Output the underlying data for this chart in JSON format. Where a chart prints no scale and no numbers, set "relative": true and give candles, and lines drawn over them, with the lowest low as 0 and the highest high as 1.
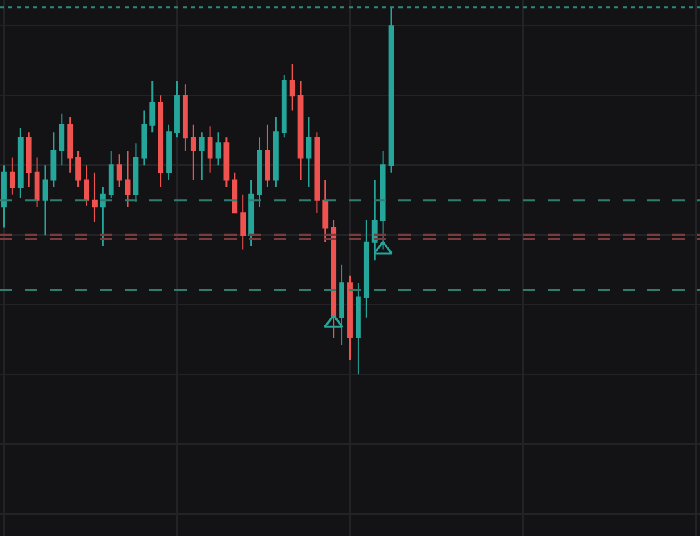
{
  "chart_data": {
    "type": "candlestick",
    "relative": true,
    "grid": true,
    "colors": [
      "#26a69a",
      "#ef5350",
      "#26a69a",
      "#ef5350",
      "#ef5350",
      "#26a69a",
      "#26a69a",
      "#26a69a",
      "#ef5350",
      "#ef5350",
      "#ef5350",
      "#ef5350",
      "#26a69a",
      "#26a69a",
      "#ef5350",
      "#ef5350",
      "#26a69a",
      "#26a69a",
      "#26a69a",
      "#ef5350",
      "#26a69a",
      "#26a69a",
      "#ef5350",
      "#ef5350",
      "#26a69a",
      "#ef5350",
      "#26a69a",
      "#ef5350",
      "#ef5350",
      "#ef5350",
      "#26a69a",
      "#26a69a",
      "#ef5350",
      "#26a69a",
      "#26a69a",
      "#ef5350",
      "#ef5350",
      "#26a69a",
      "#ef5350",
      "#ef5350",
      "#ef5350",
      "#26a69a",
      "#ef5350",
      "#26a69a",
      "#26a69a",
      "#26a69a",
      "#26a69a",
      "#26a69a",
      null,
      null,
      null,
      null,
      null,
      null,
      null,
      null,
      null,
      null,
      null,
      null,
      null,
      null,
      null,
      null,
      null,
      null,
      null,
      null,
      null,
      null,
      null,
      null,
      null,
      null,
      null,
      null,
      null,
      null,
      null,
      null,
      null,
      null,
      null,
      null,
      null
    ],
    "categories": [
      null,
      null,
      null,
      null,
      null,
      null,
      null,
      null,
      null,
      null,
      null,
      null,
      null,
      null,
      null,
      null,
      null,
      null,
      null,
      null,
      null,
      null,
      null,
      null,
      null,
      null,
      null,
      null,
      null,
      null,
      null,
      null,
      null,
      null,
      null,
      null,
      null,
      null,
      null,
      null,
      null,
      null,
      null,
      null,
      null,
      null,
      null,
      null,
      null,
      null,
      null,
      null,
      null,
      null,
      null,
      null,
      null,
      null,
      null,
      null,
      null,
      null,
      null,
      null,
      null,
      null,
      null,
      null,
      null,
      null,
      null,
      null,
      null,
      null,
      null,
      null,
      null,
      null,
      null,
      null,
      null,
      null,
      null,
      null,
      null
    ],
    "ohlc": [
      [
        0.457,
        0.57,
        0.4,
        0.55
      ],
      [
        0.55,
        0.59,
        0.49,
        0.51
      ],
      [
        0.51,
        0.67,
        0.48,
        0.645
      ],
      [
        0.645,
        0.66,
        0.51,
        0.55
      ],
      [
        0.55,
        0.59,
        0.457,
        0.475
      ],
      [
        0.475,
        0.57,
        0.38,
        0.53
      ],
      [
        0.53,
        0.66,
        0.51,
        0.61
      ],
      [
        0.61,
        0.71,
        0.57,
        0.68
      ],
      [
        0.68,
        0.7,
        0.55,
        0.59
      ],
      [
        0.59,
        0.61,
        0.51,
        0.53
      ],
      [
        0.53,
        0.57,
        0.46,
        0.475
      ],
      [
        0.475,
        0.55,
        0.415,
        0.457
      ],
      [
        0.457,
        0.51,
        0.35,
        0.49
      ],
      [
        0.49,
        0.61,
        0.48,
        0.57
      ],
      [
        0.57,
        0.6,
        0.51,
        0.53
      ],
      [
        0.53,
        0.61,
        0.457,
        0.49
      ],
      [
        0.49,
        0.63,
        0.47,
        0.59
      ],
      [
        0.59,
        0.72,
        0.57,
        0.68
      ],
      [
        0.68,
        0.8,
        0.66,
        0.74
      ],
      [
        0.74,
        0.76,
        0.51,
        0.55
      ],
      [
        0.55,
        0.68,
        0.53,
        0.66
      ],
      [
        0.66,
        0.8,
        0.645,
        0.76
      ],
      [
        0.76,
        0.79,
        0.61,
        0.645
      ],
      [
        0.645,
        0.68,
        0.53,
        0.61
      ],
      [
        0.61,
        0.66,
        0.53,
        0.645
      ],
      [
        0.645,
        0.675,
        0.55,
        0.59
      ],
      [
        0.59,
        0.66,
        0.57,
        0.63
      ],
      [
        0.63,
        0.645,
        0.51,
        0.53
      ],
      [
        0.53,
        0.55,
        0.44,
        0.44
      ],
      [
        0.44,
        0.49,
        0.34,
        0.38
      ],
      [
        0.38,
        0.53,
        0.35,
        0.49
      ],
      [
        0.49,
        0.645,
        0.457,
        0.61
      ],
      [
        0.61,
        0.68,
        0.51,
        0.53
      ],
      [
        0.53,
        0.7,
        0.51,
        0.66
      ],
      [
        0.66,
        0.815,
        0.645,
        0.8
      ],
      [
        0.8,
        0.845,
        0.72,
        0.76
      ],
      [
        0.76,
        0.8,
        0.53,
        0.59
      ],
      [
        0.59,
        0.7,
        0.51,
        0.645
      ],
      [
        0.645,
        0.66,
        0.44,
        0.475
      ],
      [
        0.475,
        0.53,
        0.36,
        0.4
      ],
      [
        0.4,
        0.42,
        0.1,
        0.155
      ],
      [
        0.155,
        0.3,
        0.08,
        0.25
      ],
      [
        0.25,
        0.27,
        0.04,
        0.1
      ],
      [
        0.1,
        0.25,
        0,
        0.21
      ],
      [
        0.21,
        0.42,
        0.155,
        0.36
      ],
      [
        0.36,
        0.53,
        0.31,
        0.42
      ],
      [
        0.42,
        0.61,
        0.34,
        0.57
      ],
      [
        0.57,
        1.0,
        0.55,
        0.95
      ],
      null,
      null,
      null,
      null,
      null,
      null,
      null,
      null,
      null,
      null,
      null,
      null,
      null,
      null,
      null,
      null,
      null,
      null,
      null,
      null,
      null,
      null,
      null,
      null,
      null,
      null,
      null,
      null,
      null,
      null,
      null,
      null,
      null,
      null,
      null,
      null,
      null
    ],
    "series": [
      {
        "type": "scatter",
        "marker": "triangle",
        "color": "#26a69a",
        "values": [
          null,
          null,
          null,
          null,
          null,
          null,
          null,
          null,
          null,
          null,
          null,
          null,
          null,
          null,
          null,
          null,
          null,
          null,
          null,
          null,
          null,
          null,
          null,
          null,
          null,
          null,
          null,
          null,
          null,
          null,
          null,
          null,
          null,
          null,
          null,
          null,
          null,
          null,
          null,
          null,
          0.14,
          null,
          null,
          null,
          null,
          null,
          0.34,
          null,
          null,
          null,
          null,
          null,
          null,
          null,
          null,
          null,
          null,
          null,
          null,
          null,
          null,
          null,
          null,
          null,
          null,
          null,
          null,
          null,
          null,
          null,
          null,
          null,
          null,
          null,
          null,
          null,
          null,
          null,
          null,
          null,
          null,
          null,
          null,
          null,
          null
        ]
      }
    ],
    "ref_lines": [
      {
        "axis": "y",
        "value": 1.0,
        "color": "#2e8b7a",
        "line_style": "dotted"
      },
      {
        "axis": "y",
        "value": 0.475,
        "color": "#2e7d6e",
        "line_style": "dashed"
      },
      {
        "axis": "y",
        "value": 0.38,
        "color": "#7a3a3e",
        "line_style": "dashed"
      },
      {
        "axis": "y",
        "value": 0.37,
        "color": "#7a3a3e",
        "line_style": "dashed"
      },
      {
        "axis": "y",
        "value": 0.23,
        "color": "#2e7d6e",
        "line_style": "dashed"
      }
    ]
  }
}
